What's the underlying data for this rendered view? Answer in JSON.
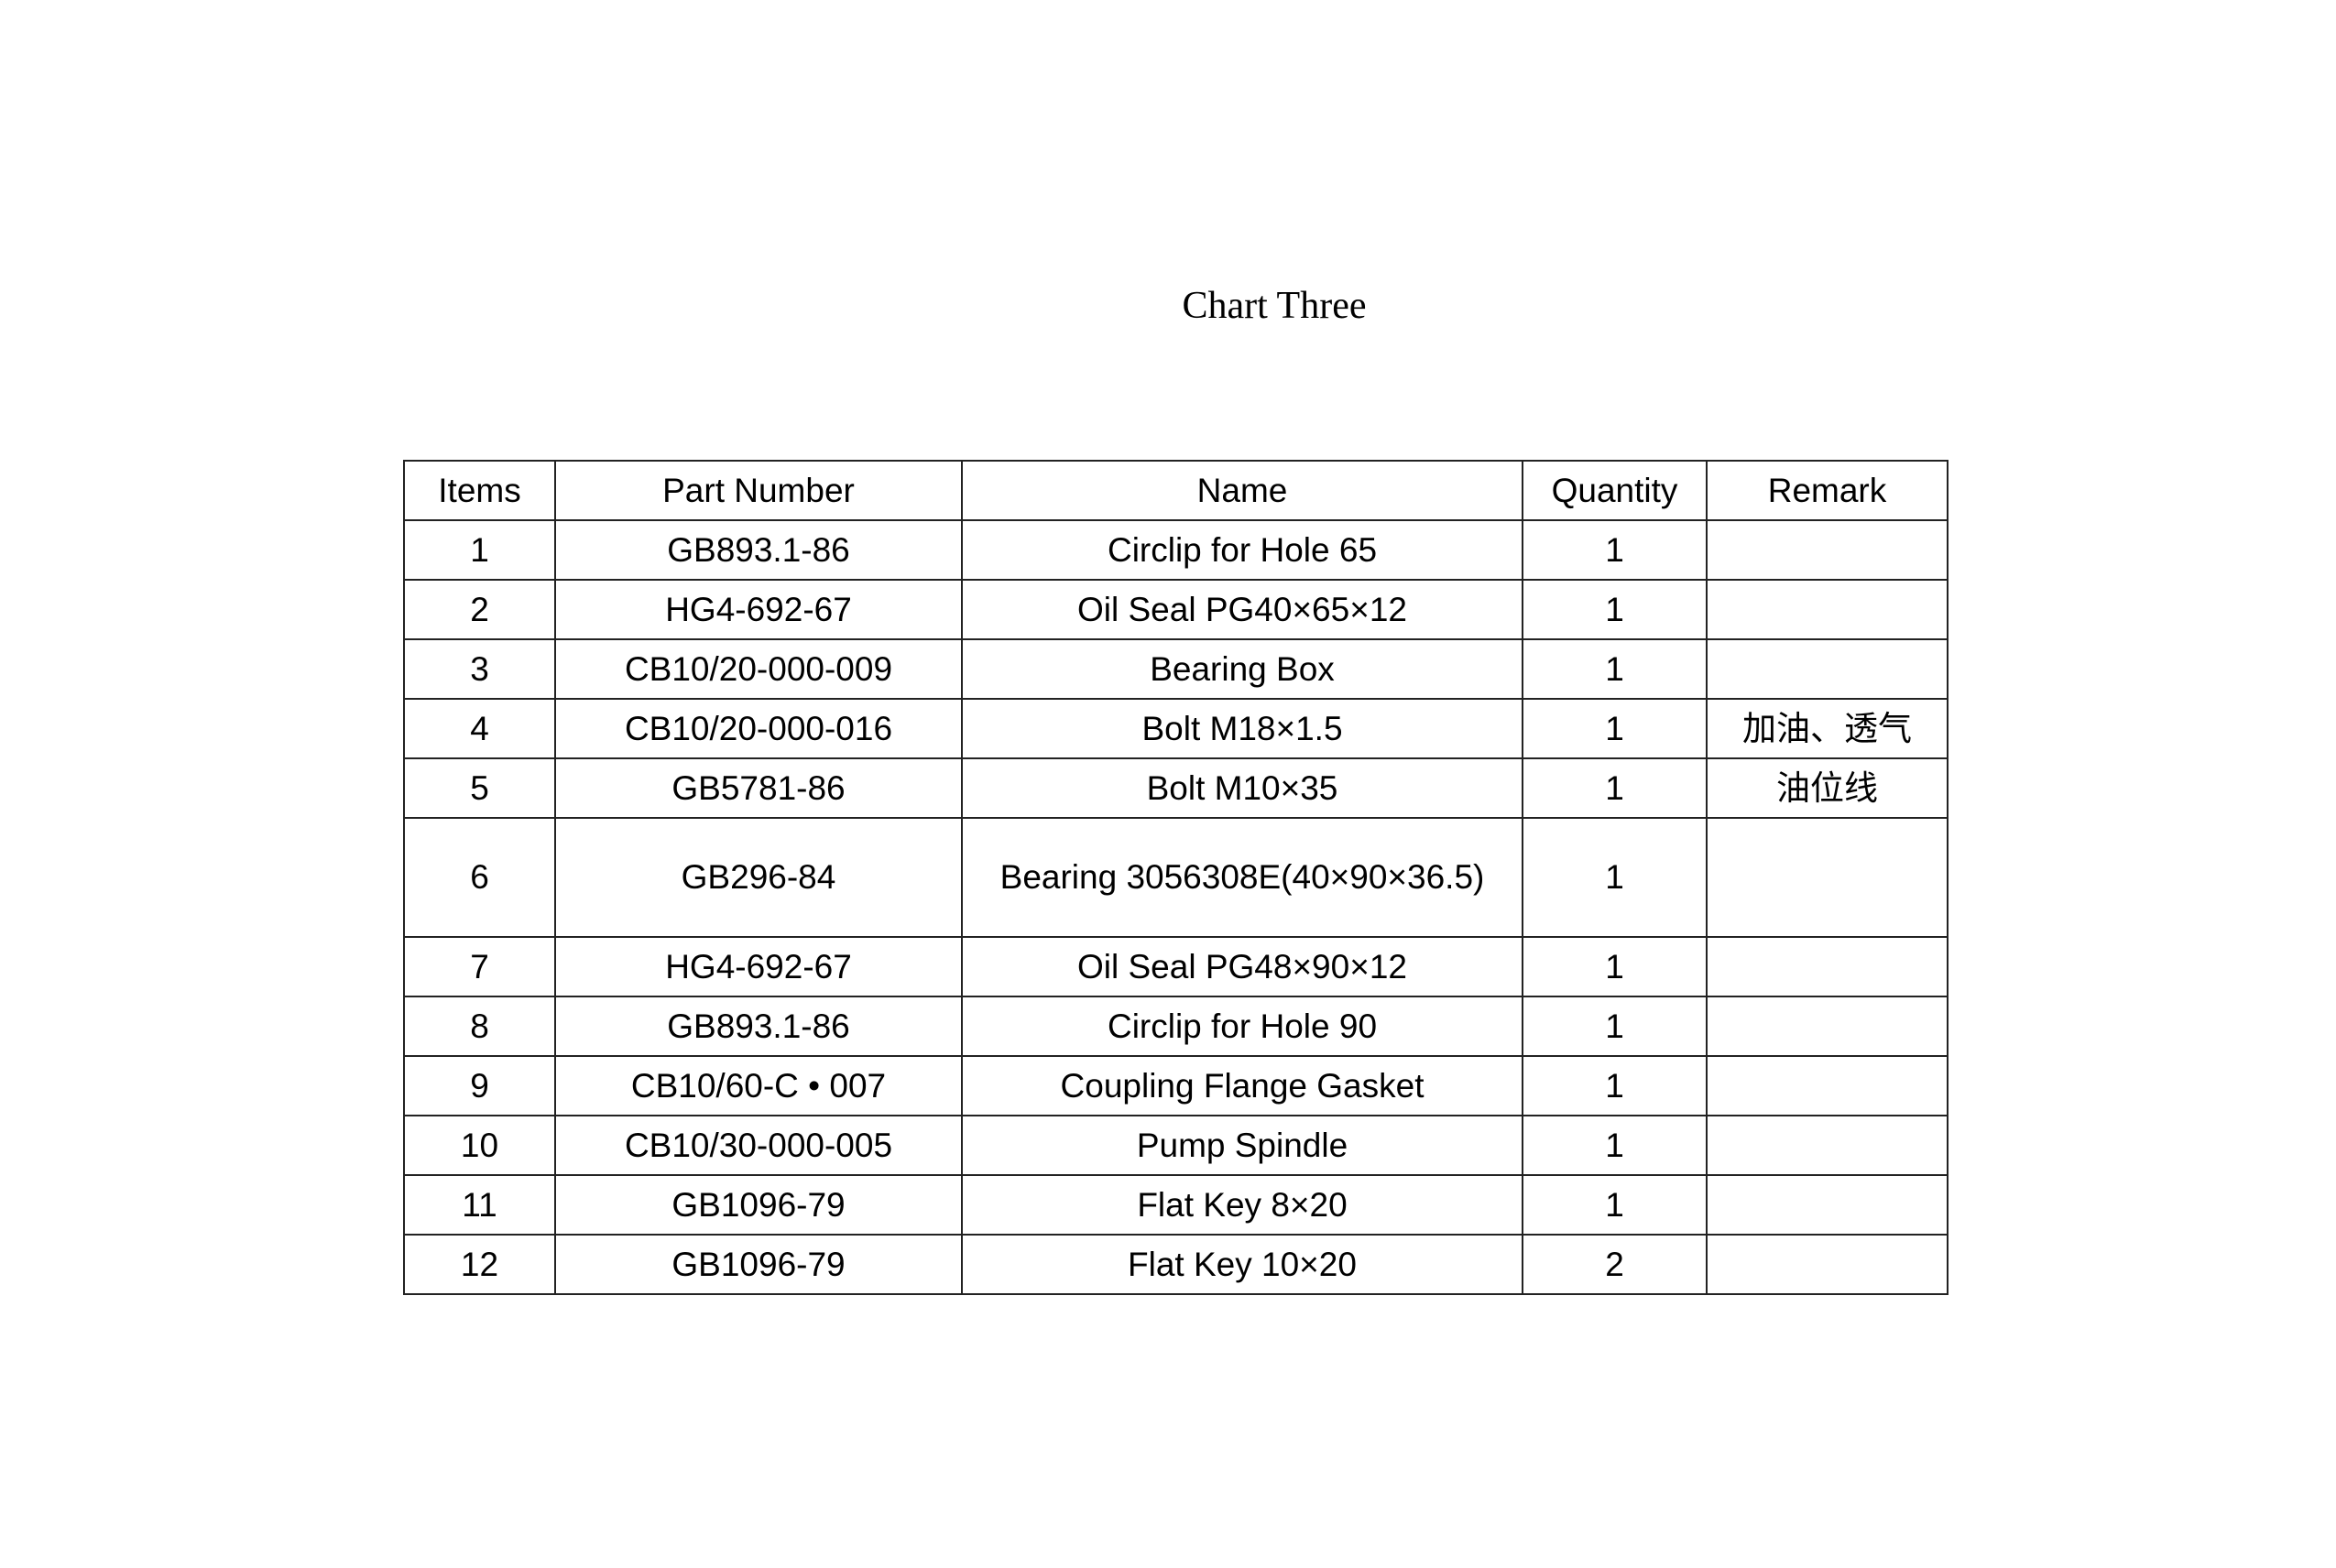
{
  "title": "Chart Three",
  "table": {
    "headers": [
      "Items",
      "Part Number",
      "Name",
      "Quantity",
      "Remark"
    ],
    "rows": [
      {
        "item": "1",
        "part": "GB893.1-86",
        "name": "Circlip for Hole 65",
        "qty": "1",
        "remark": ""
      },
      {
        "item": "2",
        "part": "HG4-692-67",
        "name": "Oil Seal PG40×65×12",
        "qty": "1",
        "remark": ""
      },
      {
        "item": "3",
        "part": "CB10/20-000-009",
        "name": "Bearing Box",
        "qty": "1",
        "remark": ""
      },
      {
        "item": "4",
        "part": "CB10/20-000-016",
        "name": "Bolt M18×1.5",
        "qty": "1",
        "remark": "加油、透气"
      },
      {
        "item": "5",
        "part": "GB5781-86",
        "name": "Bolt M10×35",
        "qty": "1",
        "remark": "油位线"
      },
      {
        "item": "6",
        "part": "GB296-84",
        "name": "Bearing 3056308E(40×90×36.5)",
        "qty": "1",
        "remark": ""
      },
      {
        "item": "7",
        "part": "HG4-692-67",
        "name": "Oil Seal PG48×90×12",
        "qty": "1",
        "remark": ""
      },
      {
        "item": "8",
        "part": "GB893.1-86",
        "name": "Circlip for Hole 90",
        "qty": "1",
        "remark": ""
      },
      {
        "item": "9",
        "part": "CB10/60-C • 007",
        "name": "Coupling Flange Gasket",
        "qty": "1",
        "remark": ""
      },
      {
        "item": "10",
        "part": "CB10/30-000-005",
        "name": "Pump Spindle",
        "qty": "1",
        "remark": ""
      },
      {
        "item": "11",
        "part": "GB1096-79",
        "name": "Flat Key 8×20",
        "qty": "1",
        "remark": ""
      },
      {
        "item": "12",
        "part": "GB1096-79",
        "name": "Flat Key 10×20",
        "qty": "2",
        "remark": ""
      }
    ]
  }
}
